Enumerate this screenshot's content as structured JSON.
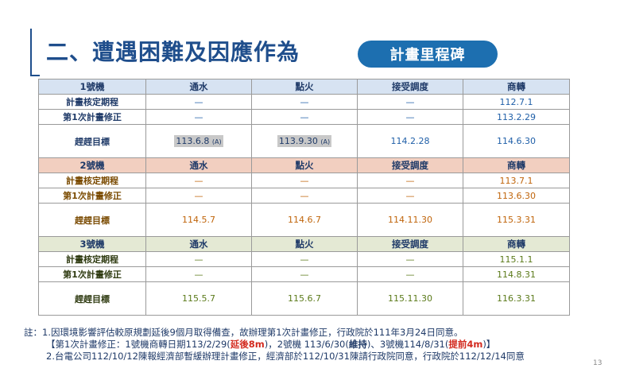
{
  "title": "二、遭遇困難及因應作為",
  "badge": "計畫里程碑",
  "columns": [
    "通水",
    "點火",
    "接受調度",
    "商轉"
  ],
  "units": [
    {
      "name": "1號機",
      "rows": [
        {
          "label": "計畫核定期程",
          "values": [
            "—",
            "—",
            "—",
            "112.7.1"
          ]
        },
        {
          "label": "第1次計畫修正",
          "values": [
            "—",
            "—",
            "—",
            "113.2.29"
          ]
        },
        {
          "label": "趕趕目標",
          "values": [
            "113.6.8",
            "113.9.30",
            "114.2.28",
            "114.6.30"
          ],
          "tags": [
            "(A)",
            "(A)",
            "",
            ""
          ]
        }
      ]
    },
    {
      "name": "2號機",
      "rows": [
        {
          "label": "計畫核定期程",
          "values": [
            "—",
            "—",
            "—",
            "113.7.1"
          ]
        },
        {
          "label": "第1次計畫修正",
          "values": [
            "—",
            "—",
            "—",
            "113.6.30"
          ]
        },
        {
          "label": "趕趕目標",
          "values": [
            "114.5.7",
            "114.6.7",
            "114.11.30",
            "115.3.31"
          ]
        }
      ]
    },
    {
      "name": "3號機",
      "rows": [
        {
          "label": "計畫核定期程",
          "values": [
            "—",
            "—",
            "—",
            "115.1.1"
          ]
        },
        {
          "label": "第1次計畫修正",
          "values": [
            "—",
            "—",
            "—",
            "114.8.31"
          ]
        },
        {
          "label": "趕趕目標",
          "values": [
            "115.5.7",
            "115.6.7",
            "115.11.30",
            "116.3.31"
          ]
        }
      ]
    }
  ],
  "notes": {
    "prefix": "註：",
    "line1": "1.因環境影響評估較原規劃延後9個月取得備查，故辦理第1次計畫修正，行政院於111年3月24日同意。",
    "line2a": "【第1次計畫修正：1號機商轉日期113/2/29(",
    "line2b": "延後8m",
    "line2c": ")，2號機 113/6/30(",
    "line2d": "維持",
    "line2e": ")、3號機114/8/31(",
    "line2f": "提前4m",
    "line2g": ")】",
    "line3": "2.台電公司112/10/12陳報經濟部暫緩辦理計畫修正，經濟部於112/10/31陳請行政院同意，行政院於112/12/14同意"
  },
  "page_number": "13"
}
